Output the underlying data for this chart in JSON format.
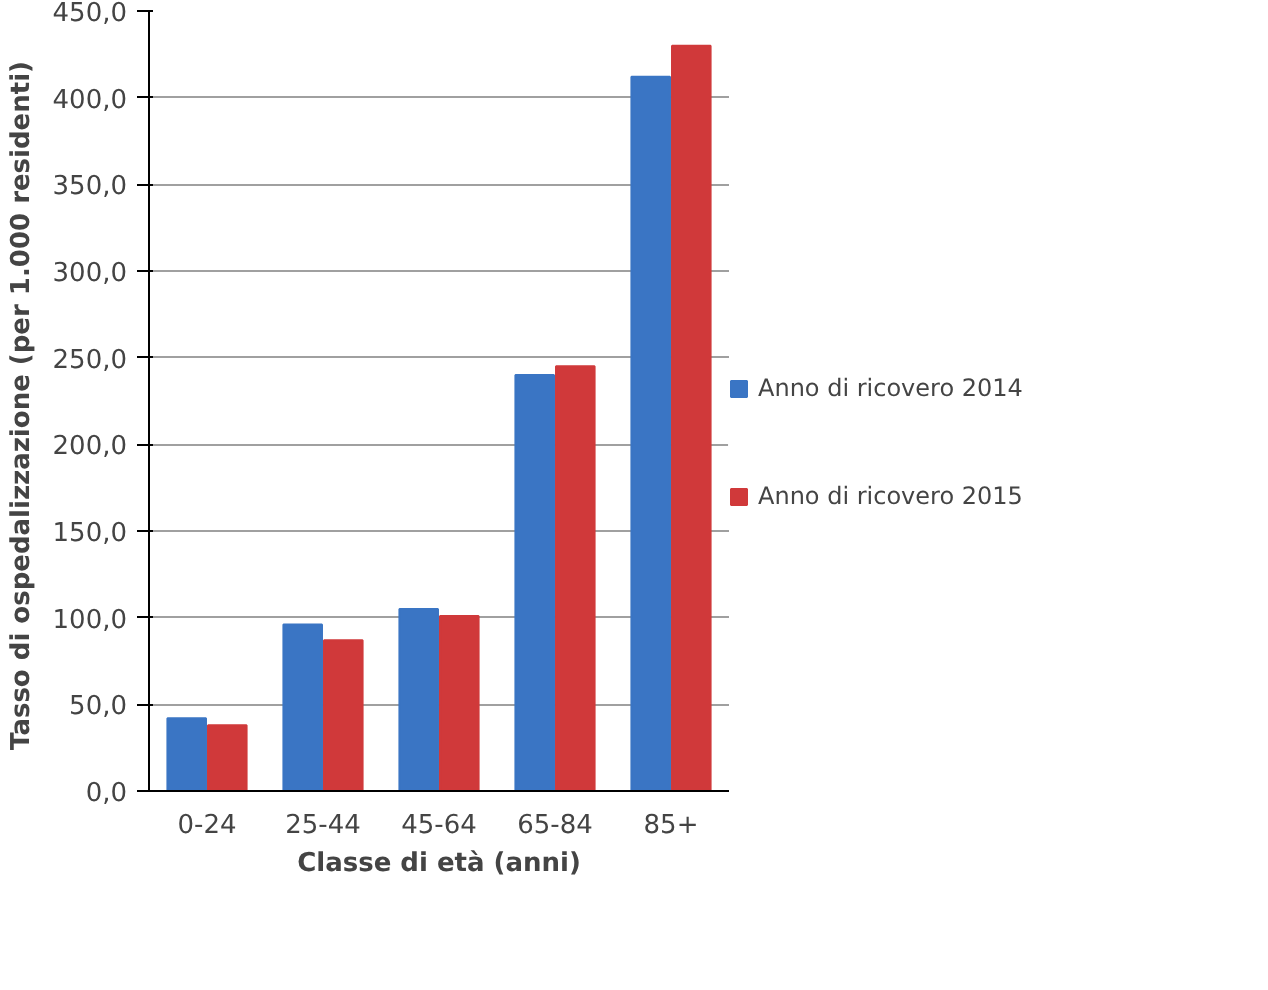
{
  "chart_data": {
    "type": "bar",
    "xlabel": "Classe di età (anni)",
    "ylabel": "Tasso di ospedalizzazione  (per 1.000 residenti)",
    "categories": [
      "0-24",
      "25-44",
      "45-64",
      "65-84",
      "85+"
    ],
    "series": [
      {
        "name": "Anno di ricovero 2014",
        "color": "#3a75c4",
        "values": [
          42,
          96,
          105,
          240,
          412
        ]
      },
      {
        "name": "Anno di ricovero 2015",
        "color": "#d0393a",
        "values": [
          38,
          87,
          101,
          245,
          430
        ]
      }
    ],
    "ylim": [
      0,
      450
    ],
    "yticks": [
      {
        "value": 0,
        "label": "0,0"
      },
      {
        "value": 50,
        "label": "50,0"
      },
      {
        "value": 100,
        "label": "100,0"
      },
      {
        "value": 150,
        "label": "150,0"
      },
      {
        "value": 200,
        "label": "200,0"
      },
      {
        "value": 250,
        "label": "250,0"
      },
      {
        "value": 300,
        "label": "300,0"
      },
      {
        "value": 350,
        "label": "350,0"
      },
      {
        "value": 400,
        "label": "400,0"
      },
      {
        "value": 450,
        "label": "450,0"
      }
    ],
    "grid": "y",
    "legend": "right"
  }
}
